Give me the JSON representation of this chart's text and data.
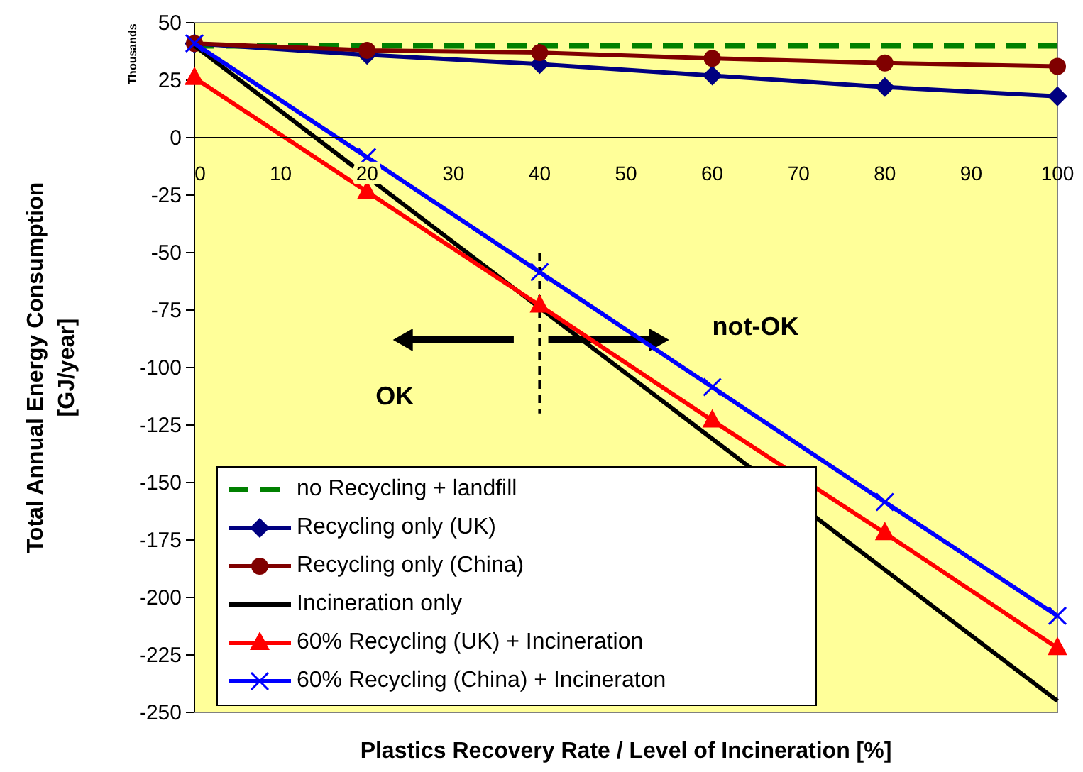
{
  "chart_data": {
    "type": "line",
    "xlabel": "Plastics Recovery Rate  / Level of Incineration  [%]",
    "ylabel": "Total Annual Energy Consumption [GJ/year]",
    "annotations": [
      "Thousands",
      "OK",
      "not-OK"
    ],
    "xlim": [
      0,
      100
    ],
    "xticks": [
      0,
      10,
      20,
      30,
      40,
      50,
      60,
      70,
      80,
      90,
      100
    ],
    "ylim": [
      -250,
      50
    ],
    "yticks": [
      50,
      25,
      0,
      -25,
      -50,
      -75,
      -100,
      -125,
      -150,
      -175,
      -200,
      -225,
      -250
    ],
    "grid": false,
    "legend": "bottom left",
    "ref_lines": [
      {
        "axis": "x",
        "value": 40,
        "line_style": "dashed",
        "color": "#000000"
      }
    ],
    "series": [
      {
        "name": "no Recycling + landfill",
        "color": "#008000",
        "x": [
          0,
          100
        ],
        "values": [
          40,
          40
        ],
        "marker": "none",
        "line_style": "dashed"
      },
      {
        "name": "Recycling only (UK)",
        "color": "#000080",
        "x": [
          0,
          20,
          40,
          60,
          80,
          100
        ],
        "values": [
          41,
          36,
          32,
          27,
          22,
          18
        ],
        "marker": "diamond",
        "line_style": "solid"
      },
      {
        "name": "Recycling only (China)",
        "color": "#800000",
        "x": [
          0,
          20,
          40,
          60,
          80,
          100
        ],
        "values": [
          41,
          38,
          37,
          34.5,
          32.5,
          31
        ],
        "marker": "circle",
        "line_style": "solid"
      },
      {
        "name": "Incineration only",
        "color": "#000000",
        "x": [
          0,
          100
        ],
        "values": [
          40,
          -245
        ],
        "marker": "none",
        "line_style": "solid"
      },
      {
        "name": "60% Recycling (UK) + Incineration",
        "color": "#ff0000",
        "x": [
          0,
          20,
          40,
          60,
          80,
          100
        ],
        "values": [
          26,
          -23.5,
          -73,
          -123,
          -172,
          -222
        ],
        "marker": "triangle",
        "line_style": "solid"
      },
      {
        "name": "60% Recycling (China) + Incineraton",
        "color": "#0000ff",
        "x": [
          0,
          20,
          40,
          60,
          80,
          100
        ],
        "values": [
          41,
          -8.5,
          -58.5,
          -108.5,
          -158.5,
          -208
        ],
        "marker": "cross",
        "line_style": "solid"
      }
    ]
  }
}
